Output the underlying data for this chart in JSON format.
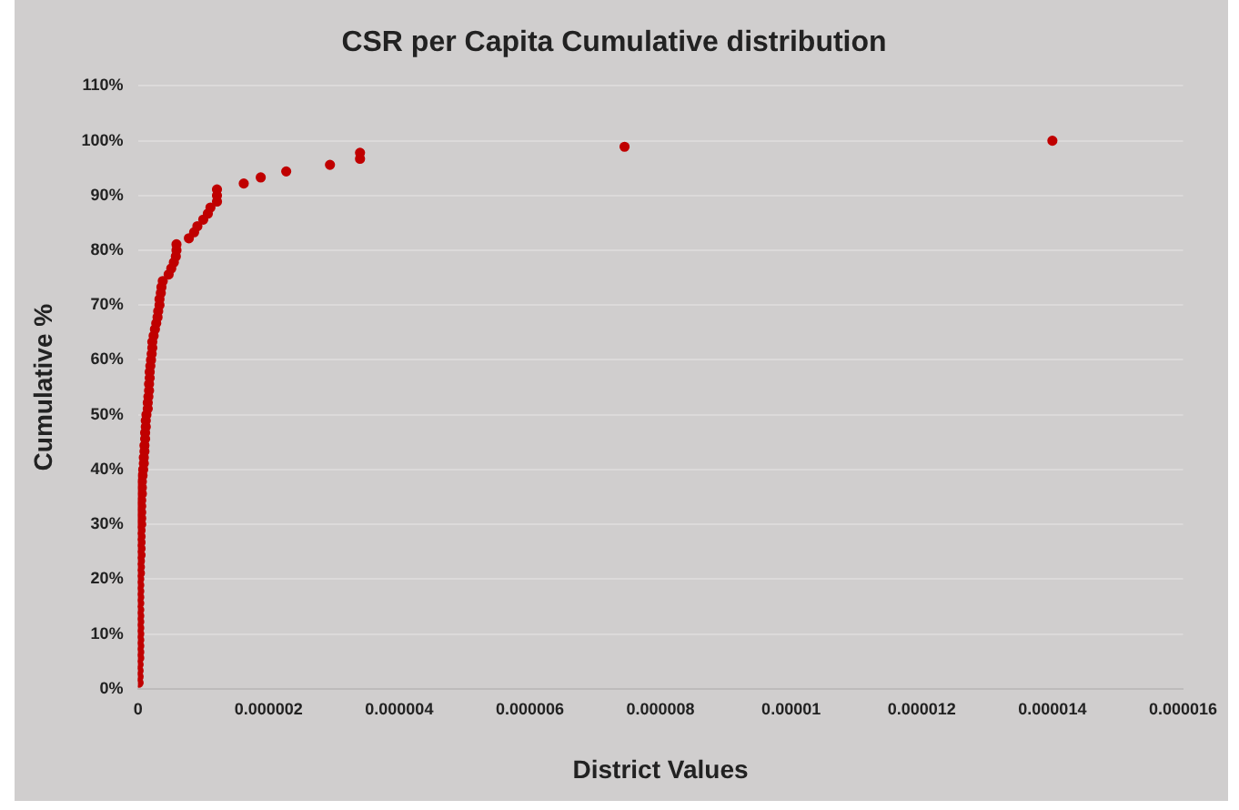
{
  "chart_data": {
    "type": "scatter",
    "title": "CSR per Capita Cumulative distribution",
    "xlabel": "District Values",
    "ylabel": "Cumulative %",
    "x": [
      1e-08,
      1e-08,
      1e-08,
      1e-08,
      2e-08,
      2e-08,
      2e-08,
      2e-08,
      2e-08,
      2e-08,
      2e-08,
      2e-08,
      2e-08,
      2e-08,
      2e-08,
      2e-08,
      2e-08,
      2e-08,
      3e-08,
      3e-08,
      3e-08,
      4e-08,
      4e-08,
      4e-08,
      4e-08,
      4e-08,
      5e-08,
      5e-08,
      5e-08,
      5e-08,
      5e-08,
      6e-08,
      6e-08,
      6e-08,
      7e-08,
      8e-08,
      9e-08,
      9e-08,
      1e-07,
      1e-07,
      1.1e-07,
      1.1e-07,
      1.2e-07,
      1.2e-07,
      1.3e-07,
      1.5e-07,
      1.5e-07,
      1.6e-07,
      1.7e-07,
      1.7e-07,
      1.8e-07,
      1.8e-07,
      1.9e-07,
      2e-07,
      2.1e-07,
      2.2e-07,
      2.2e-07,
      2.4e-07,
      2.6e-07,
      2.8e-07,
      3e-07,
      3.1e-07,
      3.3e-07,
      3.3e-07,
      3.5e-07,
      3.6e-07,
      3.8e-07,
      4.7e-07,
      5.1e-07,
      5.5e-07,
      5.8e-07,
      5.9e-07,
      5.9e-07,
      7.8e-07,
      8.6e-07,
      9.1e-07,
      1e-06,
      1.07e-06,
      1.11e-06,
      1.21e-06,
      1.21e-06,
      1.21e-06,
      1.62e-06,
      1.88e-06,
      2.27e-06,
      2.94e-06,
      3.4e-06,
      3.4e-06,
      7.45e-06,
      1.4e-05
    ],
    "values": [
      1.1,
      2.2,
      3.3,
      4.4,
      5.6,
      6.7,
      7.8,
      8.9,
      10,
      11.1,
      12.2,
      13.3,
      14.4,
      15.6,
      16.7,
      17.8,
      18.9,
      20,
      21.1,
      22.2,
      23.3,
      24.4,
      25.6,
      26.7,
      27.8,
      28.9,
      30,
      31.1,
      32.2,
      33.3,
      34.4,
      35.6,
      36.7,
      37.8,
      38.9,
      40,
      41.1,
      42.2,
      43.3,
      44.4,
      45.6,
      46.7,
      47.8,
      48.9,
      50,
      51.1,
      52.2,
      53.3,
      54.4,
      55.6,
      56.7,
      57.8,
      58.9,
      60,
      61.1,
      62.2,
      63.3,
      64.4,
      65.6,
      66.7,
      67.8,
      68.9,
      70,
      71.1,
      72.2,
      73.3,
      74.4,
      75.6,
      76.7,
      77.8,
      78.9,
      80,
      81.1,
      82.2,
      83.3,
      84.4,
      85.6,
      86.7,
      87.8,
      88.9,
      90,
      91.1,
      92.2,
      93.3,
      94.4,
      95.6,
      96.7,
      97.8,
      98.9,
      100
    ],
    "color": "#c00000",
    "marker": "circle",
    "grid": "y",
    "legend": false,
    "xlim": [
      0,
      1.6e-05
    ],
    "xticks": [
      0,
      {
        "value": 2e-06,
        "label": "0.000002"
      },
      {
        "value": 4e-06,
        "label": "0.000004"
      },
      {
        "value": 6e-06,
        "label": "0.000006"
      },
      {
        "value": 8e-06,
        "label": "0.000008"
      },
      {
        "value": 1e-05,
        "label": "0.00001"
      },
      {
        "value": 1.2e-05,
        "label": "0.000012"
      },
      {
        "value": 1.4e-05,
        "label": "0.000014"
      },
      {
        "value": 1.6e-05,
        "label": "0.000016"
      }
    ],
    "ylim": [
      0,
      110
    ],
    "yticks": [
      {
        "value": 0,
        "label": "0%"
      },
      {
        "value": 10,
        "label": "10%"
      },
      {
        "value": 20,
        "label": "20%"
      },
      {
        "value": 30,
        "label": "30%"
      },
      {
        "value": 40,
        "label": "40%"
      },
      {
        "value": 50,
        "label": "50%"
      },
      {
        "value": 60,
        "label": "60%"
      },
      {
        "value": 70,
        "label": "70%"
      },
      {
        "value": 80,
        "label": "80%"
      },
      {
        "value": 90,
        "label": "90%"
      },
      {
        "value": 100,
        "label": "100%"
      },
      {
        "value": 110,
        "label": "110%"
      }
    ]
  }
}
